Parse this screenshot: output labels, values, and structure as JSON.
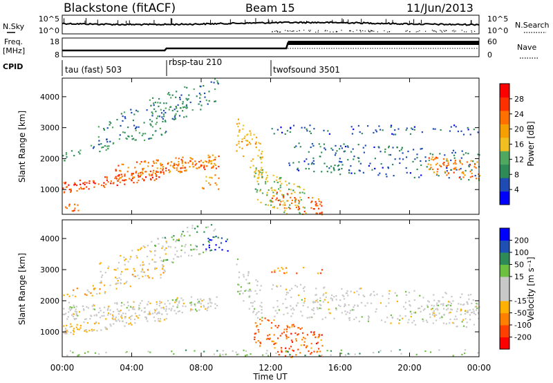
{
  "header": {
    "station": "Blackstone (fitACF)",
    "beam": "Beam 15",
    "date": "11/Jun/2013"
  },
  "nsky_panel": {
    "left_label": "N.Sky",
    "right_label": "N.Search",
    "left_ticks": [
      "10^5",
      "10^0"
    ],
    "right_ticks": [
      "10^5",
      "10^0"
    ]
  },
  "freq_panel": {
    "left_label_line1": "Freq.",
    "left_label_line2": "[MHz]",
    "right_label": "Nave",
    "left_ticks": [
      "18",
      "8"
    ],
    "right_ticks": [
      "60",
      "0"
    ]
  },
  "cpid_panel": {
    "label": "CPID",
    "segments": [
      {
        "name": "tau (fast) 503",
        "start_hour": 0
      },
      {
        "name": "rbsp-tau 210",
        "start_hour": 6
      },
      {
        "name": "twofsound 3501",
        "start_hour": 12
      }
    ]
  },
  "colors": {
    "power_scale": [
      "#0000ff",
      "#1e4bb4",
      "#2e8b57",
      "#4fa860",
      "#f0c020",
      "#f5a000",
      "#ff7000",
      "#ff3000",
      "#ff0000"
    ],
    "velocity_scale": [
      "#0000ff",
      "#1e50b4",
      "#2e8b57",
      "#6cc040",
      "#c8c8c8",
      "#c8c8c8",
      "#ffb000",
      "#ff8000",
      "#ff4000",
      "#ff0000"
    ],
    "ground_scatter": "#c0c0c0"
  },
  "chart_data": [
    {
      "type": "heatmap",
      "quantity": "power",
      "xlabel": "",
      "ylabel": "Slant Range [km]",
      "xlim": [
        0,
        24
      ],
      "ylim": [
        200,
        4600
      ],
      "yticks": [
        "1000",
        "2000",
        "3000",
        "4000"
      ],
      "colorbar": {
        "label": "Power [dB]",
        "ticks": [
          "4",
          "8",
          "12",
          "16",
          "20",
          "24",
          "28"
        ],
        "range": [
          0,
          32
        ]
      },
      "regions": [
        {
          "t0": 0.0,
          "t1": 6.0,
          "r0": 900,
          "r1": 1250,
          "value": 26,
          "drift_per_hour": 80,
          "density": 0.9
        },
        {
          "t0": 3.0,
          "t1": 9.0,
          "r0": 1350,
          "r1": 1850,
          "value": 22,
          "drift_per_hour": 60,
          "density": 0.7
        },
        {
          "t0": 0.0,
          "t1": 6.0,
          "r0": 1900,
          "r1": 2200,
          "value": 10,
          "drift_per_hour": 150,
          "density": 0.45
        },
        {
          "t0": 2.0,
          "t1": 7.0,
          "r0": 2300,
          "r1": 3200,
          "value": 8,
          "drift_per_hour": 220,
          "density": 0.3
        },
        {
          "t0": 5.0,
          "t1": 9.0,
          "r0": 3000,
          "r1": 4000,
          "value": 9,
          "drift_per_hour": 180,
          "density": 0.35
        },
        {
          "t0": 6.0,
          "t1": 9.0,
          "r0": 1700,
          "r1": 1950,
          "value": 24,
          "drift_per_hour": 0,
          "density": 0.8
        },
        {
          "t0": 8.0,
          "t1": 9.0,
          "r0": 1000,
          "r1": 1500,
          "value": 20,
          "drift_per_hour": 0,
          "density": 0.5
        },
        {
          "t0": 10.0,
          "t1": 11.5,
          "r0": 2200,
          "r1": 3400,
          "value": 18,
          "drift_per_hour": -600,
          "density": 0.55
        },
        {
          "t0": 11.0,
          "t1": 14.0,
          "r0": 600,
          "r1": 1800,
          "value": 14,
          "drift_per_hour": -250,
          "density": 0.6
        },
        {
          "t0": 12.0,
          "t1": 15.0,
          "r0": 500,
          "r1": 1000,
          "value": 24,
          "drift_per_hour": -100,
          "density": 0.6
        },
        {
          "t0": 12.0,
          "t1": 24.0,
          "r0": 2800,
          "r1": 3100,
          "value": 6,
          "drift_per_hour": 0,
          "density": 0.3
        },
        {
          "t0": 13.0,
          "t1": 24.0,
          "r0": 1600,
          "r1": 2600,
          "value": 7,
          "drift_per_hour": -30,
          "density": 0.3
        },
        {
          "t0": 21.0,
          "t1": 24.0,
          "r0": 1500,
          "r1": 2100,
          "value": 22,
          "drift_per_hour": -50,
          "density": 0.65
        },
        {
          "t0": 0.0,
          "t1": 1.0,
          "r0": 300,
          "r1": 600,
          "value": 24,
          "drift_per_hour": 0,
          "density": 0.6
        }
      ]
    },
    {
      "type": "heatmap",
      "quantity": "velocity",
      "xlabel": "Time UT",
      "ylabel": "Slant Range [km]",
      "xlim": [
        0,
        24
      ],
      "ylim": [
        200,
        4600
      ],
      "xticks": [
        "00:00",
        "04:00",
        "08:00",
        "12:00",
        "16:00",
        "20:00",
        "00:00"
      ],
      "yticks": [
        "1000",
        "2000",
        "3000",
        "4000"
      ],
      "colorbar": {
        "label": "Velocity [m s⁻¹]",
        "ticks": [
          "200",
          "100",
          "50",
          "15",
          "-15",
          "-50",
          "-100",
          "-200"
        ],
        "range": [
          -250,
          250
        ]
      },
      "regions": [
        {
          "t0": 0.0,
          "t1": 6.0,
          "r0": 900,
          "r1": 1250,
          "value": -40,
          "drift_per_hour": 80,
          "density": 0.8
        },
        {
          "t0": 0.0,
          "t1": 9.0,
          "r0": 1350,
          "r1": 1850,
          "value": 0,
          "drift_per_hour": 40,
          "density": 0.75
        },
        {
          "t0": 0.0,
          "t1": 6.0,
          "r0": 1900,
          "r1": 2300,
          "value": -60,
          "drift_per_hour": 150,
          "density": 0.4
        },
        {
          "t0": 2.0,
          "t1": 7.0,
          "r0": 2300,
          "r1": 3200,
          "value": -30,
          "drift_per_hour": 220,
          "density": 0.3
        },
        {
          "t0": 5.0,
          "t1": 9.0,
          "r0": 3000,
          "r1": 4000,
          "value": 60,
          "drift_per_hour": 180,
          "density": 0.3
        },
        {
          "t0": 8.0,
          "t1": 9.5,
          "r0": 3600,
          "r1": 4100,
          "value": 180,
          "drift_per_hour": 0,
          "density": 0.45
        },
        {
          "t0": 10.0,
          "t1": 11.5,
          "r0": 2200,
          "r1": 3400,
          "value": 40,
          "drift_per_hour": -600,
          "density": 0.5
        },
        {
          "t0": 11.0,
          "t1": 15.0,
          "r0": 500,
          "r1": 1600,
          "value": -150,
          "drift_per_hour": -150,
          "density": 0.5
        },
        {
          "t0": 12.0,
          "t1": 15.0,
          "r0": 2900,
          "r1": 3100,
          "value": -120,
          "drift_per_hour": 0,
          "density": 0.45
        },
        {
          "t0": 12.0,
          "t1": 24.0,
          "r0": 1500,
          "r1": 2600,
          "value": 0,
          "drift_per_hour": -30,
          "density": 0.35
        },
        {
          "t0": 0.0,
          "t1": 24.0,
          "r0": 250,
          "r1": 450,
          "value": 60,
          "drift_per_hour": 0,
          "density": 0.25
        },
        {
          "t0": 21.0,
          "t1": 24.0,
          "r0": 1500,
          "r1": 2100,
          "value": 0,
          "drift_per_hour": -50,
          "density": 0.55
        }
      ]
    }
  ]
}
